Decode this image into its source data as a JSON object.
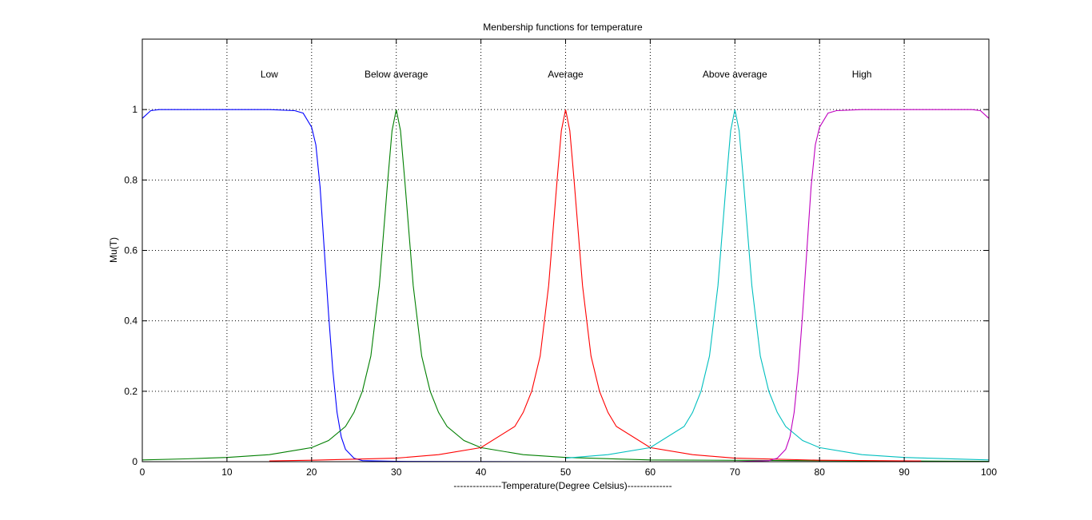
{
  "chart_data": {
    "type": "line",
    "title": "Menbership functions for temperature",
    "xlabel": "---------------Temperature(Degree Celsius)--------------",
    "ylabel": "Mu(T)",
    "xlim": [
      0,
      100
    ],
    "ylim": [
      0,
      1.2
    ],
    "xticks": [
      0,
      10,
      20,
      30,
      40,
      50,
      60,
      70,
      80,
      90,
      100
    ],
    "xtick_labels": [
      "0",
      "10",
      "20",
      "30",
      "40",
      "50",
      "60",
      "70",
      "80",
      "90",
      "100"
    ],
    "yticks": [
      0,
      0.2,
      0.4,
      0.6,
      0.8,
      1.0
    ],
    "ytick_labels": [
      "0",
      "0.2",
      "0.4",
      "0.6",
      "0.8",
      "1"
    ],
    "grid": true,
    "annotations": [
      {
        "text": "Low",
        "x": 15,
        "y": 1.1
      },
      {
        "text": "Below average",
        "x": 30,
        "y": 1.1
      },
      {
        "text": "Average",
        "x": 50,
        "y": 1.1
      },
      {
        "text": "Above average",
        "x": 70,
        "y": 1.1
      },
      {
        "text": "High",
        "x": 85,
        "y": 1.1
      }
    ],
    "series": [
      {
        "color": "#0000ff",
        "x": [
          0,
          1,
          2,
          5,
          10,
          15,
          18,
          19,
          20,
          20.5,
          21,
          21.5,
          22,
          22.5,
          23,
          23.5,
          24,
          25,
          26,
          30,
          50,
          100
        ],
        "y": [
          0.975,
          0.997,
          1.0,
          1.0,
          1.0,
          1.0,
          0.997,
          0.99,
          0.95,
          0.9,
          0.78,
          0.6,
          0.42,
          0.26,
          0.14,
          0.07,
          0.035,
          0.01,
          0.003,
          0.001,
          0.0,
          0.0
        ]
      },
      {
        "color": "#007f00",
        "x": [
          0,
          5,
          10,
          15,
          20,
          22,
          24,
          25,
          26,
          27,
          28,
          29,
          29.5,
          30,
          30.5,
          31,
          32,
          33,
          34,
          35,
          36,
          38,
          40,
          45,
          50,
          60,
          100
        ],
        "y": [
          0.005,
          0.008,
          0.012,
          0.02,
          0.04,
          0.06,
          0.1,
          0.14,
          0.2,
          0.3,
          0.5,
          0.8,
          0.94,
          1.0,
          0.94,
          0.8,
          0.5,
          0.3,
          0.2,
          0.14,
          0.1,
          0.06,
          0.04,
          0.02,
          0.012,
          0.005,
          0.001
        ]
      },
      {
        "color": "#ff0000",
        "x": [
          15,
          20,
          30,
          35,
          40,
          44,
          45,
          46,
          47,
          48,
          49,
          49.5,
          50,
          50.5,
          51,
          52,
          53,
          54,
          55,
          56,
          60,
          65,
          70,
          80,
          92
        ],
        "y": [
          0.002,
          0.004,
          0.01,
          0.02,
          0.04,
          0.1,
          0.14,
          0.2,
          0.3,
          0.5,
          0.8,
          0.94,
          1.0,
          0.94,
          0.8,
          0.5,
          0.3,
          0.2,
          0.14,
          0.1,
          0.04,
          0.02,
          0.01,
          0.004,
          0.002
        ]
      },
      {
        "color": "#00bfbf",
        "x": [
          50,
          55,
          60,
          64,
          65,
          66,
          67,
          68,
          69,
          69.5,
          70,
          70.5,
          71,
          72,
          73,
          74,
          75,
          76,
          78,
          80,
          85,
          90,
          100
        ],
        "y": [
          0.01,
          0.02,
          0.04,
          0.1,
          0.14,
          0.2,
          0.3,
          0.5,
          0.8,
          0.94,
          1.0,
          0.94,
          0.8,
          0.5,
          0.3,
          0.2,
          0.14,
          0.1,
          0.06,
          0.04,
          0.02,
          0.012,
          0.005
        ]
      },
      {
        "color": "#bf00bf",
        "x": [
          70,
          74,
          75,
          76,
          76.5,
          77,
          77.5,
          78,
          78.5,
          79,
          79.5,
          80,
          81,
          82,
          85,
          90,
          95,
          98,
          99,
          100
        ],
        "y": [
          0.0,
          0.003,
          0.01,
          0.035,
          0.07,
          0.14,
          0.26,
          0.42,
          0.6,
          0.78,
          0.9,
          0.95,
          0.99,
          0.997,
          1.0,
          1.0,
          1.0,
          1.0,
          0.997,
          0.975
        ]
      }
    ]
  }
}
